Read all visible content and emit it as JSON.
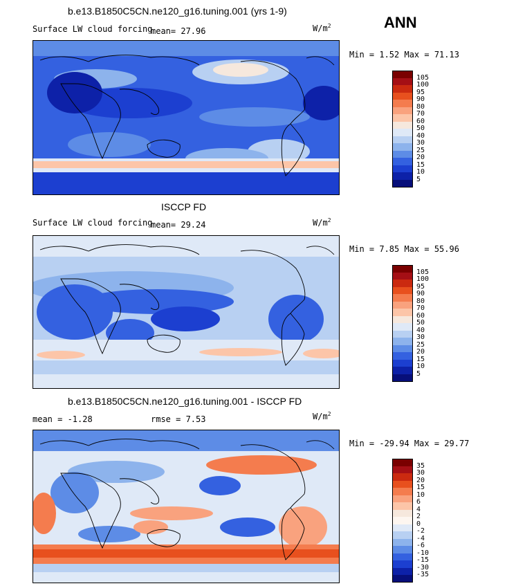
{
  "season": "ANN",
  "units_main": "W/m",
  "units_sup": "2",
  "panels": [
    {
      "title": "b.e13.B1850C5CN.ne120_g16.tuning.001 (yrs 1-9)",
      "subtitle": "Surface LW cloud forcing",
      "stat_left": "mean=   27.96",
      "stat_right": "",
      "minmax": "Min =    1.52 Max =  71.13"
    },
    {
      "title": "ISCCP FD",
      "subtitle": "Surface LW cloud forcing",
      "stat_left": "mean=   29.24",
      "stat_right": "",
      "minmax": "Min =    7.85 Max =  55.96"
    },
    {
      "title": "b.e13.B1850C5CN.ne120_g16.tuning.001 - ISCCP FD",
      "subtitle": "",
      "stat_left": "mean =  -1.28",
      "stat_right": "rmse =    7.53",
      "minmax": "Min = -29.94 Max =  29.77"
    }
  ],
  "colorbars": [
    {
      "levels": [
        "105",
        "100",
        "95",
        "90",
        "80",
        "70",
        "60",
        "50",
        "40",
        "30",
        "25",
        "20",
        "15",
        "10",
        "5"
      ],
      "colors": [
        "#7a0000",
        "#a50f15",
        "#cb2a10",
        "#e8501e",
        "#f47c4e",
        "#f9a27e",
        "#fcc5a8",
        "#f6e8dd",
        "#dfe9f7",
        "#b8d0f2",
        "#8db3ec",
        "#5d8ce6",
        "#3461e0",
        "#1c3fd0",
        "#0d21a8",
        "#070f7a"
      ]
    },
    {
      "levels": [
        "105",
        "100",
        "95",
        "90",
        "80",
        "70",
        "60",
        "50",
        "40",
        "30",
        "25",
        "20",
        "15",
        "10",
        "5"
      ],
      "colors": [
        "#7a0000",
        "#a50f15",
        "#cb2a10",
        "#e8501e",
        "#f47c4e",
        "#f9a27e",
        "#fcc5a8",
        "#f6e8dd",
        "#dfe9f7",
        "#b8d0f2",
        "#8db3ec",
        "#5d8ce6",
        "#3461e0",
        "#1c3fd0",
        "#0d21a8",
        "#070f7a"
      ]
    },
    {
      "levels": [
        "35",
        "30",
        "20",
        "15",
        "10",
        "6",
        "4",
        "2",
        "0",
        "-2",
        "-4",
        "-6",
        "-10",
        "-15",
        "-30",
        "-35"
      ],
      "colors": [
        "#7a0000",
        "#a50f15",
        "#cb2a10",
        "#e8501e",
        "#f47c4e",
        "#f9a27e",
        "#fcc5a8",
        "#f6e8dd",
        "#fdf6f0",
        "#dfe9f7",
        "#b8d0f2",
        "#8db3ec",
        "#5d8ce6",
        "#3461e0",
        "#1c3fd0",
        "#0d21a8",
        "#070f7a"
      ]
    }
  ],
  "chart_data": [
    {
      "type": "heatmap",
      "title": "b.e13.B1850C5CN.ne120_g16.tuning.001 (yrs 1-9)",
      "variable": "Surface LW cloud forcing",
      "units": "W/m2",
      "mean": 27.96,
      "min": 1.52,
      "max": 71.13,
      "contour_levels": [
        5,
        10,
        15,
        20,
        25,
        30,
        40,
        50,
        60,
        70,
        80,
        90,
        95,
        100,
        105
      ]
    },
    {
      "type": "heatmap",
      "title": "ISCCP FD",
      "variable": "Surface LW cloud forcing",
      "units": "W/m2",
      "mean": 29.24,
      "min": 7.85,
      "max": 55.96,
      "contour_levels": [
        5,
        10,
        15,
        20,
        25,
        30,
        40,
        50,
        60,
        70,
        80,
        90,
        95,
        100,
        105
      ]
    },
    {
      "type": "heatmap",
      "title": "b.e13.B1850C5CN.ne120_g16.tuning.001 - ISCCP FD",
      "units": "W/m2",
      "mean": -1.28,
      "rmse": 7.53,
      "min": -29.94,
      "max": 29.77,
      "contour_levels": [
        -35,
        -30,
        -15,
        -10,
        -6,
        -4,
        -2,
        0,
        2,
        4,
        6,
        10,
        15,
        20,
        30,
        35
      ]
    }
  ]
}
